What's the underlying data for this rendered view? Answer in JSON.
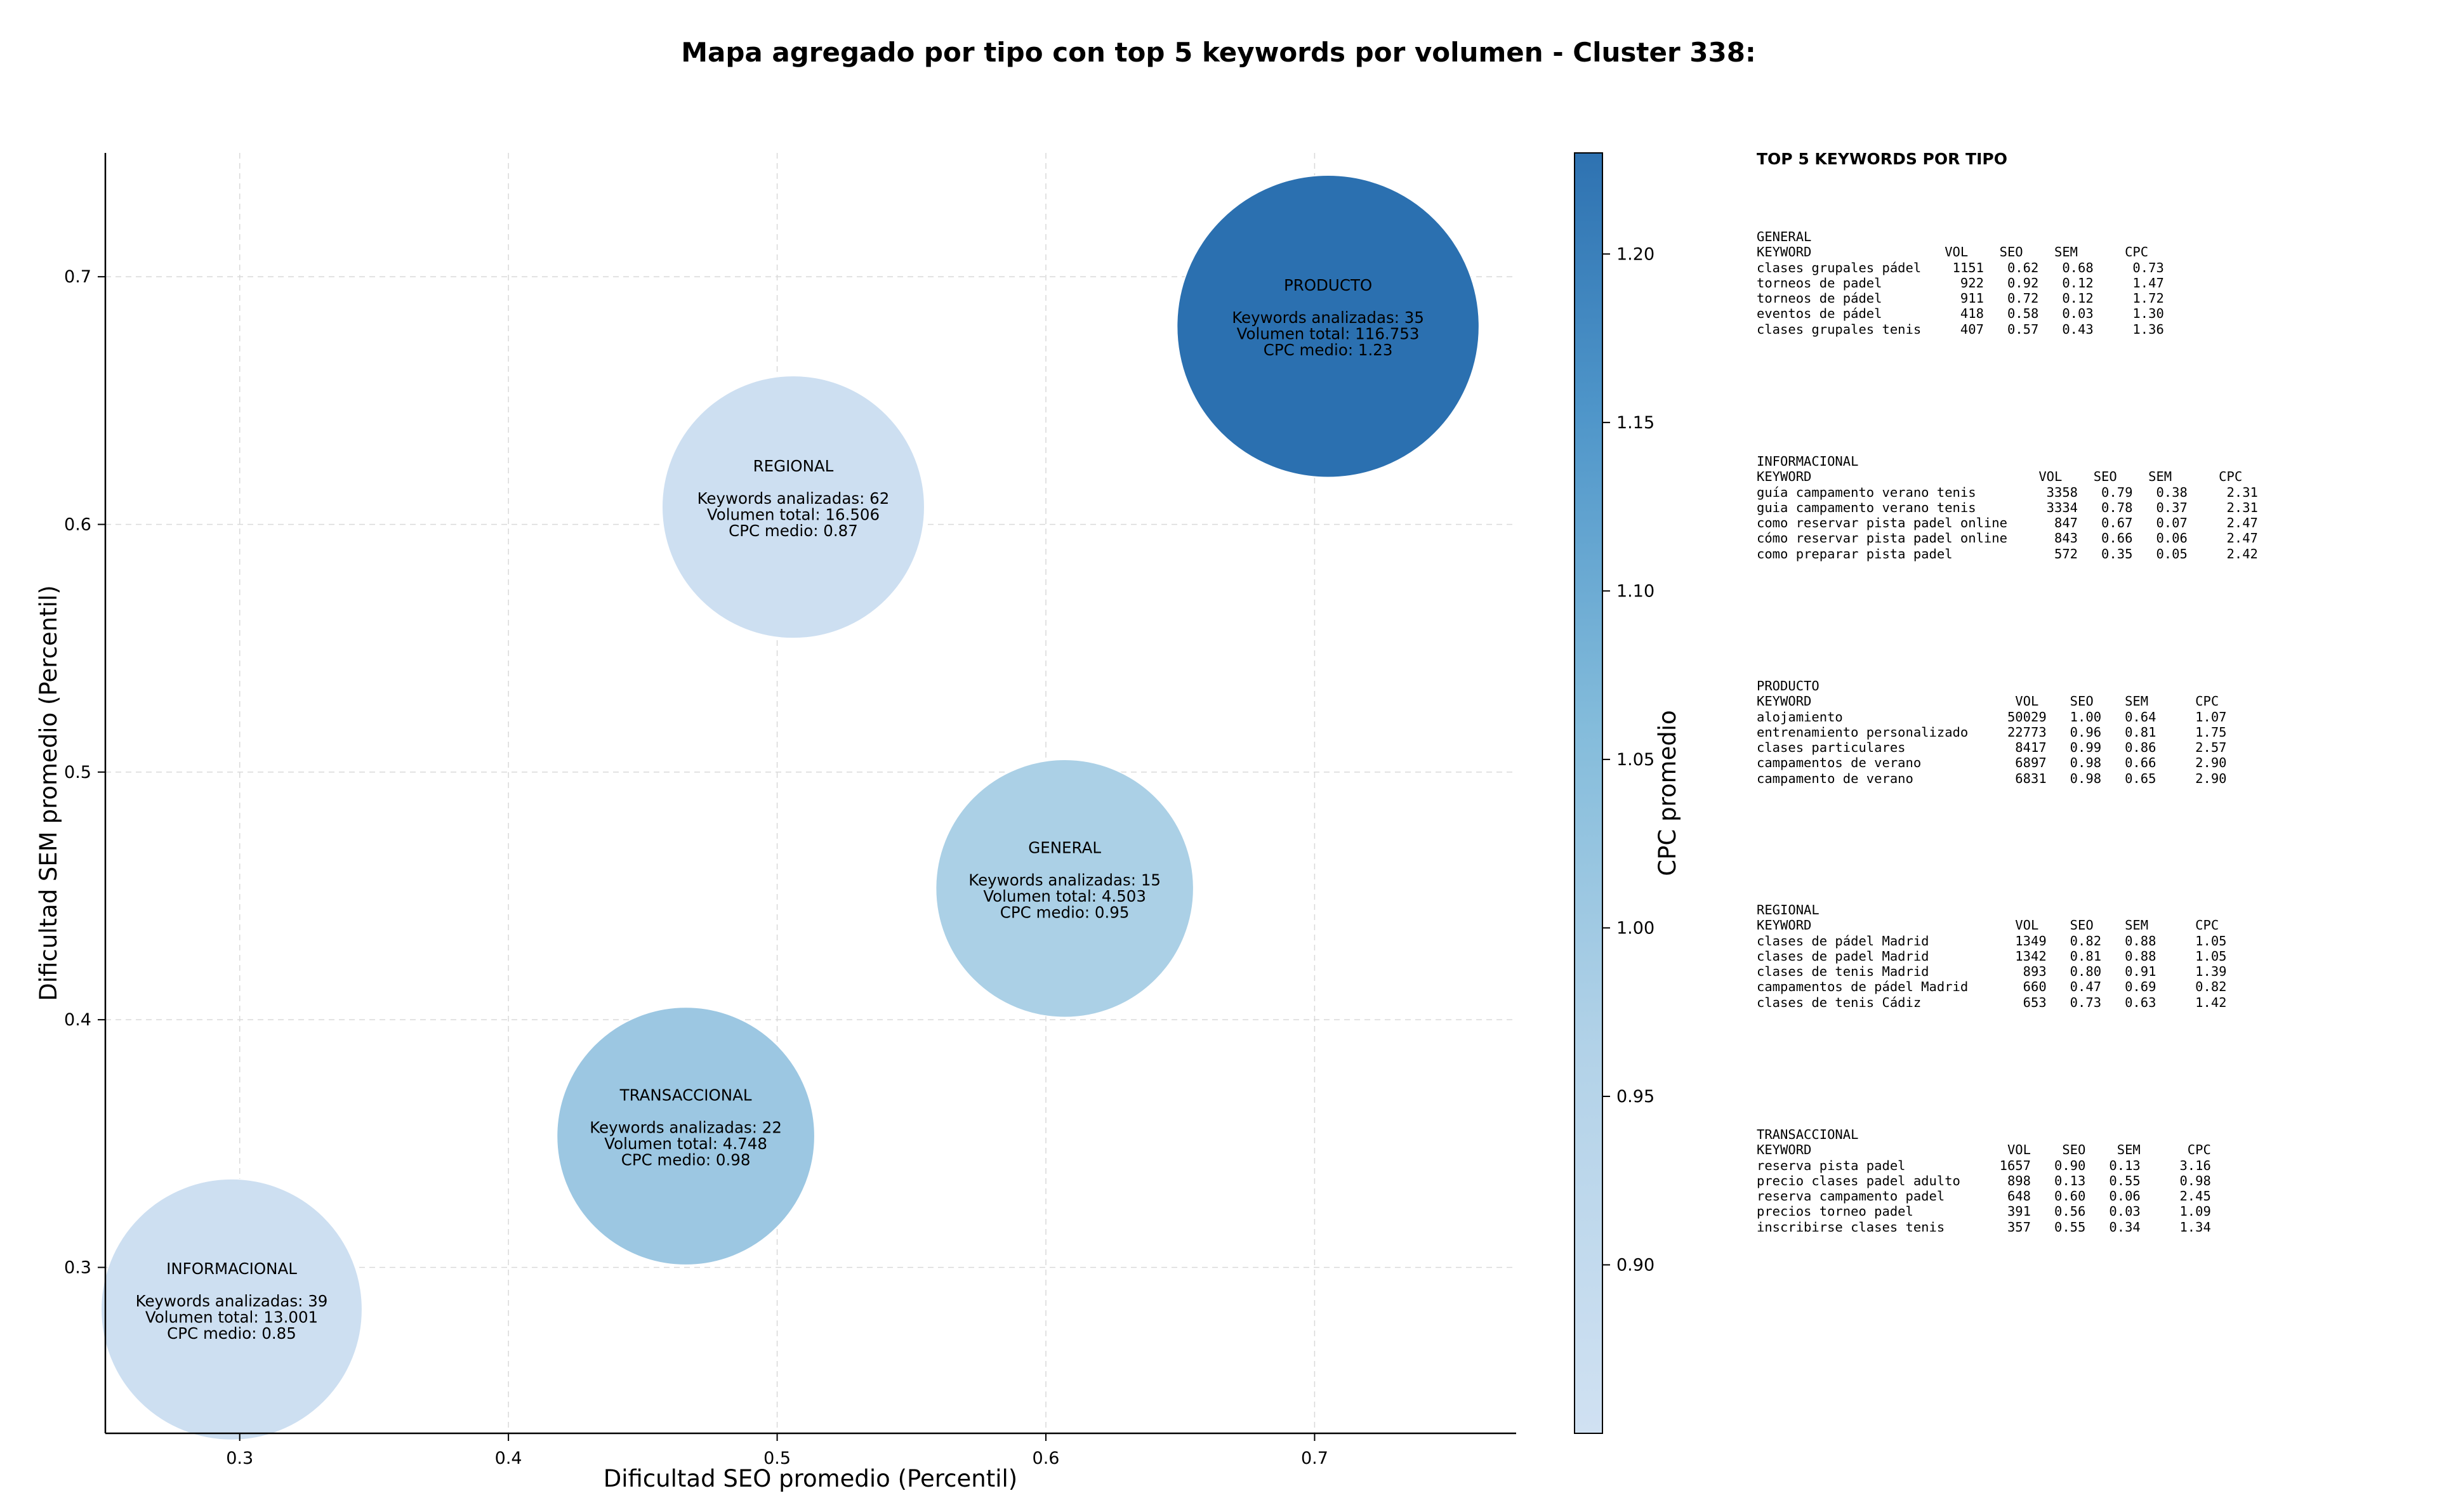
{
  "chart_data": {
    "type": "scatter",
    "title": "Mapa agregado por tipo con top 5 keywords por volumen - Cluster 338:",
    "xlabel": "Dificultad SEO promedio (Percentil)",
    "ylabel": "Dificultad SEM promedio (Percentil)",
    "xlim": [
      0.25,
      0.775
    ],
    "ylim": [
      0.233,
      0.75
    ],
    "xticks": [
      "0.3",
      "0.4",
      "0.5",
      "0.6",
      "0.7"
    ],
    "yticks": [
      "0.3",
      "0.4",
      "0.5",
      "0.6",
      "0.7"
    ],
    "grid": true,
    "colorbar": {
      "label": "CPC promedio",
      "range": [
        0.85,
        1.23
      ],
      "ticks": [
        "0.90",
        "0.95",
        "1.00",
        "1.05",
        "1.10",
        "1.15",
        "1.20"
      ]
    },
    "points": [
      {
        "name": "GENERAL",
        "x": 0.607,
        "y": 0.453,
        "volume": 4503,
        "color": "#abd0e6",
        "lines": [
          "GENERAL",
          "",
          "Keywords analizadas: 15",
          "Volumen total: 4.503",
          "CPC medio: 0.95"
        ]
      },
      {
        "name": "INFORMACIONAL",
        "x": 0.297,
        "y": 0.283,
        "volume": 13001,
        "color": "#cddff1",
        "lines": [
          "INFORMACIONAL",
          "",
          "Keywords analizadas: 39",
          "Volumen total: 13.001",
          "CPC medio: 0.85"
        ]
      },
      {
        "name": "PRODUCTO",
        "x": 0.705,
        "y": 0.68,
        "volume": 116753,
        "color": "#2b70b0",
        "lines": [
          "PRODUCTO",
          "",
          "Keywords analizadas: 35",
          "Volumen total: 116.753",
          "CPC medio: 1.23"
        ]
      },
      {
        "name": "REGIONAL",
        "x": 0.506,
        "y": 0.607,
        "volume": 16506,
        "color": "#cddff1",
        "lines": [
          "REGIONAL",
          "",
          "Keywords analizadas: 62",
          "Volumen total: 16.506",
          "CPC medio: 0.87"
        ]
      },
      {
        "name": "TRANSACCIONAL",
        "x": 0.466,
        "y": 0.353,
        "volume": 4748,
        "color": "#9cc7e2",
        "lines": [
          "TRANSACCIONAL",
          "",
          "Keywords analizadas: 22",
          "Volumen total: 4.748",
          "CPC medio: 0.98"
        ]
      }
    ]
  },
  "panel": {
    "title": "TOP 5 KEYWORDS POR TIPO",
    "blocks": [
      {
        "text": "GENERAL\nKEYWORD                 VOL    SEO    SEM      CPC\nclases grupales pádel    1151   0.62   0.68     0.73\ntorneos de padel          922   0.92   0.12     1.47\ntorneos de pádel          911   0.72   0.12     1.72\neventos de pádel          418   0.58   0.03     1.30\nclases grupales tenis     407   0.57   0.43     1.36"
      },
      {
        "text": "INFORMACIONAL\nKEYWORD                             VOL    SEO    SEM      CPC\nguía campamento verano tenis         3358   0.79   0.38     2.31\nguia campamento verano tenis         3334   0.78   0.37     2.31\ncomo reservar pista padel online      847   0.67   0.07     2.47\ncómo reservar pista padel online      843   0.66   0.06     2.47\ncomo preparar pista padel             572   0.35   0.05     2.42"
      },
      {
        "text": "PRODUCTO\nKEYWORD                          VOL    SEO    SEM      CPC\nalojamiento                     50029   1.00   0.64     1.07\nentrenamiento personalizado     22773   0.96   0.81     1.75\nclases particulares              8417   0.99   0.86     2.57\ncampamentos de verano            6897   0.98   0.66     2.90\ncampamento de verano             6831   0.98   0.65     2.90"
      },
      {
        "text": "REGIONAL\nKEYWORD                          VOL    SEO    SEM      CPC\nclases de pádel Madrid           1349   0.82   0.88     1.05\nclases de padel Madrid           1342   0.81   0.88     1.05\nclases de tenis Madrid            893   0.80   0.91     1.39\ncampamentos de pádel Madrid       660   0.47   0.69     0.82\nclases de tenis Cádiz             653   0.73   0.63     1.42"
      },
      {
        "text": "TRANSACCIONAL\nKEYWORD                         VOL    SEO    SEM      CPC\nreserva pista padel            1657   0.90   0.13     3.16\nprecio clases padel adulto      898   0.13   0.55     0.98\nreserva campamento padel        648   0.60   0.06     2.45\nprecios torneo padel            391   0.56   0.03     1.09\ninscribirse clases tenis        357   0.55   0.34     1.34"
      }
    ]
  }
}
